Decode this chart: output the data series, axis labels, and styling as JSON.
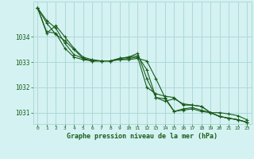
{
  "title": "Graphe pression niveau de la mer (hPa)",
  "bg_color": "#d4f2f2",
  "grid_color": "#aed8d8",
  "line_color": "#1a5c1a",
  "marker_color": "#1a5c1a",
  "xlim": [
    -0.5,
    23.5
  ],
  "ylim": [
    1030.55,
    1035.4
  ],
  "yticks": [
    1031,
    1032,
    1033,
    1034
  ],
  "xticks": [
    0,
    1,
    2,
    3,
    4,
    5,
    6,
    7,
    8,
    9,
    10,
    11,
    12,
    13,
    14,
    15,
    16,
    17,
    18,
    19,
    20,
    21,
    22,
    23
  ],
  "series": [
    [
      1035.15,
      1034.55,
      1034.1,
      1033.85,
      1033.5,
      1033.15,
      1033.05,
      1033.05,
      1033.05,
      1033.1,
      1033.1,
      1033.15,
      1033.05,
      1032.35,
      1031.6,
      1031.05,
      1031.1,
      1031.15,
      1031.05,
      1031.0,
      1031.0,
      1030.95,
      1030.88,
      1030.72
    ],
    [
      1035.15,
      1034.65,
      1034.35,
      1033.75,
      1033.3,
      1033.15,
      1033.05,
      1033.05,
      1033.05,
      1033.15,
      1033.2,
      1033.35,
      1032.35,
      1031.6,
      1031.45,
      1031.55,
      1031.35,
      1031.3,
      1031.25,
      1031.0,
      1030.85,
      1030.78,
      1030.72,
      1030.62
    ],
    [
      1035.15,
      1034.15,
      1034.45,
      1034.0,
      1033.55,
      1033.2,
      1033.1,
      1033.05,
      1033.05,
      1033.15,
      1033.2,
      1033.25,
      1032.7,
      1031.6,
      1031.55,
      1031.05,
      1031.15,
      1031.2,
      1031.1,
      1031.0,
      1030.85,
      1030.78,
      1030.72,
      1030.62
    ],
    [
      1035.15,
      1034.2,
      1034.15,
      1033.55,
      1033.2,
      1033.1,
      1033.05,
      1033.05,
      1033.05,
      1033.1,
      1033.15,
      1033.2,
      1032.0,
      1031.75,
      1031.65,
      1031.6,
      1031.3,
      1031.3,
      1031.25,
      1031.0,
      1030.85,
      1030.78,
      1030.72,
      1030.62
    ]
  ]
}
